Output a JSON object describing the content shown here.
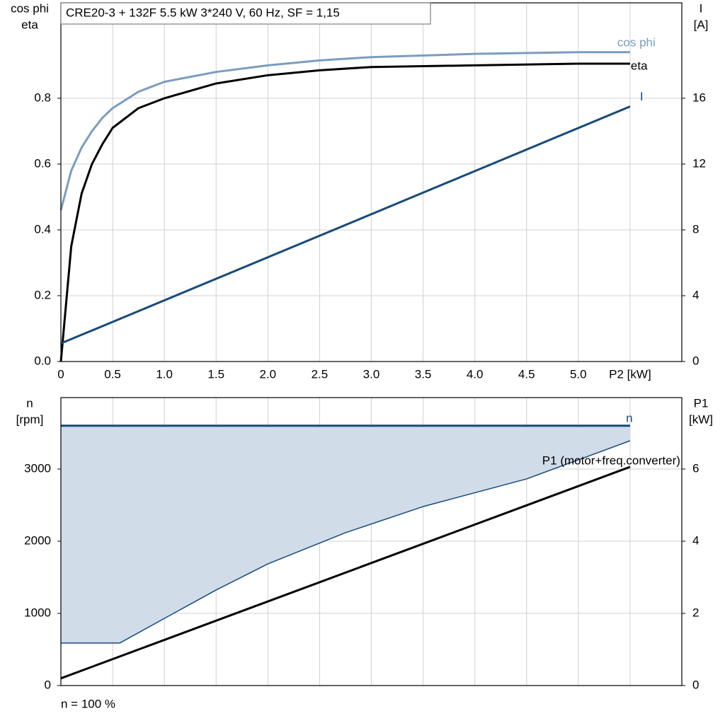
{
  "chart_data": [
    {
      "type": "line",
      "title": "CRE20-3 + 132F   5.5 kW   3*240 V, 60 Hz, SF = 1,15",
      "ylabel": [
        "cos phi",
        "eta"
      ],
      "y2label": [
        "I",
        "[A]"
      ],
      "xlim": [
        0,
        6.0
      ],
      "xticks": [
        0,
        0.5,
        {
          "value": 1.0,
          "label": "1.0"
        },
        1.5,
        {
          "value": 2.0,
          "label": "2.0"
        },
        2.5,
        {
          "value": 3.0,
          "label": "3.0"
        },
        3.5,
        {
          "value": 4.0,
          "label": "4.0"
        },
        4.5,
        {
          "value": 5.0,
          "label": "5.0"
        },
        {
          "value": 5.5,
          "label": "P2 [kW]"
        }
      ],
      "ylim": [
        0,
        1.09
      ],
      "yticks": [
        {
          "value": 0,
          "label": "0.0"
        },
        0.2,
        0.4,
        0.6,
        0.8
      ],
      "y2lim": [
        0,
        21.8
      ],
      "y2ticks": [
        0,
        4,
        8,
        12,
        16
      ],
      "grid": true,
      "show_xtick_labels": true,
      "series": [
        {
          "name": "cos phi",
          "color": "#7b9cbf",
          "width": 3,
          "x": [
            0,
            0.1,
            0.2,
            0.3,
            0.4,
            0.5,
            0.75,
            1.0,
            1.5,
            2.0,
            2.5,
            3.0,
            4.0,
            5.0,
            5.5
          ],
          "values": [
            0.46,
            0.58,
            0.65,
            0.7,
            0.74,
            0.77,
            0.82,
            0.85,
            0.88,
            0.9,
            0.915,
            0.925,
            0.935,
            0.94,
            0.94
          ]
        },
        {
          "name": "eta",
          "color": "#000000",
          "width": 3,
          "x": [
            0,
            0.1,
            0.2,
            0.3,
            0.4,
            0.5,
            0.75,
            1.0,
            1.5,
            2.0,
            2.5,
            3.0,
            4.0,
            5.0,
            5.5
          ],
          "values": [
            0,
            0.35,
            0.51,
            0.6,
            0.66,
            0.71,
            0.77,
            0.8,
            0.845,
            0.87,
            0.885,
            0.895,
            0.9,
            0.905,
            0.905
          ]
        },
        {
          "name": "I",
          "color": "#174a7c",
          "width": 3,
          "axis": "y2",
          "x": [
            0,
            5.5
          ],
          "values": [
            1.1,
            15.5
          ]
        }
      ]
    },
    {
      "type": "line",
      "ylabel": [
        "n",
        "[rpm]"
      ],
      "y2label": [
        "P1",
        "[kW]"
      ],
      "note": "n = 100 %",
      "xlim": [
        0,
        6.0
      ],
      "xticks": [
        0,
        0.5,
        1.0,
        1.5,
        2.0,
        2.5,
        3.0,
        3.5,
        4.0,
        4.5,
        5.0,
        5.5
      ],
      "show_xtick_labels": false,
      "ylim": [
        0,
        3990
      ],
      "yticks": [
        0,
        1000,
        2000,
        3000
      ],
      "y2lim": [
        0,
        7.98
      ],
      "y2ticks": [
        0,
        2,
        4,
        6
      ],
      "grid": true,
      "series": [
        {
          "name": "n",
          "color": "#174a7c",
          "width": 3,
          "x": [
            0,
            5.5
          ],
          "values": [
            3600,
            3600
          ]
        },
        {
          "color": "#174a7c",
          "width": 1.5,
          "fill_to_series": 0,
          "fill": "#d0dce8",
          "x": [
            0,
            0.57,
            1.0,
            1.5,
            2.0,
            2.75,
            3.5,
            4.5,
            5.5
          ],
          "values": [
            590,
            590,
            930,
            1324,
            1686,
            2118,
            2480,
            2863,
            3392
          ]
        },
        {
          "name": "P1 (motor+freq.converter)",
          "color": "#000000",
          "width": 3,
          "axis": "y2",
          "x": [
            0,
            5.5
          ],
          "values": [
            0.2,
            6.06
          ]
        }
      ]
    }
  ]
}
